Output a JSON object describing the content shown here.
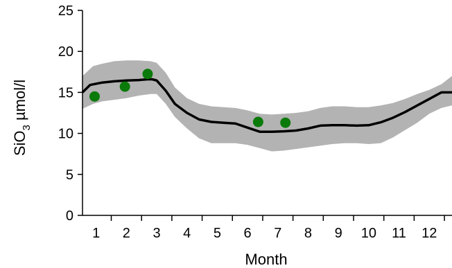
{
  "chart_data": {
    "type": "line",
    "xlabel": "Month",
    "ylabel": {
      "main": "SiO",
      "sub": "3",
      "unit": " µmol/l"
    },
    "xlim": [
      0.55,
      12.75
    ],
    "ylim": [
      0,
      25
    ],
    "x_ticks": [
      1,
      2,
      3,
      4,
      5,
      6,
      7,
      8,
      9,
      10,
      11,
      12
    ],
    "x_tick_labels": [
      "1",
      "2",
      "3",
      "4",
      "5",
      "6",
      "7",
      "8",
      "9",
      "10",
      "11",
      "12"
    ],
    "y_ticks": [
      0,
      5,
      10,
      15,
      20,
      25
    ],
    "y_tick_labels": [
      "0",
      "5",
      "10",
      "15",
      "20",
      "25"
    ],
    "series": [
      {
        "kind": "line",
        "color": "#000000",
        "x": [
          0.55,
          0.8,
          1.2,
          1.6,
          2.0,
          2.4,
          2.7,
          2.85,
          3.0,
          3.3,
          3.6,
          4.0,
          4.4,
          4.8,
          5.2,
          5.6,
          6.0,
          6.4,
          6.8,
          7.2,
          7.6,
          8.0,
          8.4,
          8.8,
          9.2,
          9.6,
          10.0,
          10.4,
          10.8,
          11.2,
          11.6,
          12.0,
          12.4,
          12.75
        ],
        "y": [
          15.0,
          15.9,
          16.2,
          16.35,
          16.45,
          16.5,
          16.6,
          16.6,
          16.45,
          15.2,
          13.6,
          12.5,
          11.7,
          11.4,
          11.3,
          11.2,
          10.7,
          10.2,
          10.2,
          10.25,
          10.35,
          10.6,
          10.95,
          11.0,
          11.0,
          10.95,
          11.0,
          11.35,
          11.9,
          12.6,
          13.4,
          14.2,
          15.0,
          15.0
        ]
      },
      {
        "kind": "band",
        "color": "#b3b3b3",
        "x": [
          0.55,
          0.9,
          1.2,
          1.6,
          2.0,
          2.4,
          2.8,
          3.0,
          3.3,
          3.6,
          4.0,
          4.4,
          4.8,
          5.2,
          5.6,
          6.0,
          6.4,
          6.8,
          7.2,
          7.6,
          8.0,
          8.4,
          8.8,
          9.2,
          9.6,
          10.0,
          10.4,
          10.8,
          11.2,
          11.6,
          12.0,
          12.4,
          12.75
        ],
        "upper": [
          17.0,
          18.2,
          18.5,
          18.8,
          18.9,
          18.9,
          18.8,
          18.6,
          17.4,
          15.6,
          14.3,
          13.6,
          13.3,
          13.2,
          13.1,
          12.8,
          12.4,
          12.3,
          12.4,
          12.5,
          12.7,
          13.1,
          13.3,
          13.3,
          13.2,
          13.2,
          13.4,
          13.7,
          14.2,
          14.8,
          15.3,
          16.0,
          17.0
        ],
        "lower": [
          13.0,
          13.6,
          13.9,
          14.1,
          14.3,
          14.6,
          14.8,
          14.8,
          13.6,
          12.0,
          10.6,
          9.4,
          8.8,
          8.8,
          8.8,
          8.6,
          8.2,
          7.8,
          7.9,
          8.1,
          8.3,
          8.5,
          8.7,
          8.8,
          8.8,
          8.7,
          8.8,
          9.5,
          10.4,
          11.3,
          12.4,
          13.1,
          13.4
        ]
      },
      {
        "kind": "points",
        "color": "#0a7a0a",
        "x": [
          0.95,
          1.95,
          2.7,
          6.35,
          7.25
        ],
        "y": [
          14.5,
          15.7,
          17.25,
          11.4,
          11.3
        ]
      }
    ]
  }
}
